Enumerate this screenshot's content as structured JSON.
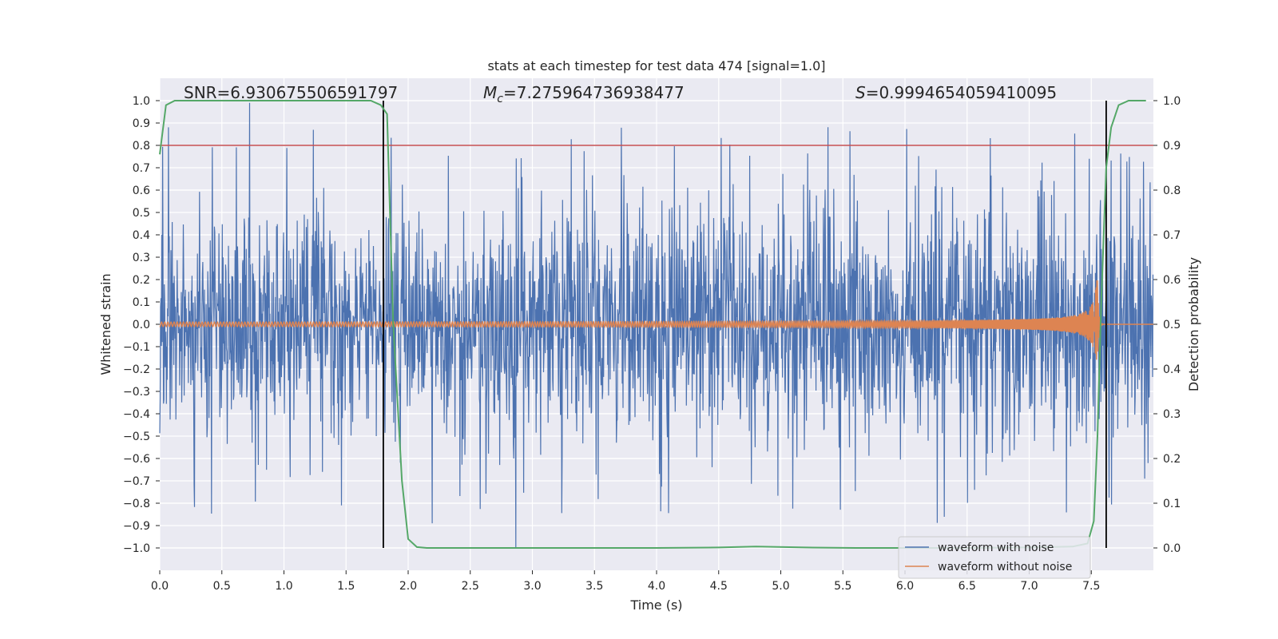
{
  "chart_data": {
    "type": "line",
    "title": "stats at each timestep for test data 474 [signal=1.0]",
    "xlabel": "Time (s)",
    "ylabel_left": "Whitened strain",
    "ylabel_right": "Detection probability",
    "xlim": [
      0.0,
      8.0
    ],
    "ylim_left": [
      -1.1,
      1.1
    ],
    "ylim_right": [
      -0.05,
      1.05
    ],
    "x_ticks": [
      "0.0",
      "0.5",
      "1.0",
      "1.5",
      "2.0",
      "2.5",
      "3.0",
      "3.5",
      "4.0",
      "4.5",
      "5.0",
      "5.5",
      "6.0",
      "6.5",
      "7.0",
      "7.5"
    ],
    "y_ticks_left": [
      "1.0",
      "0.9",
      "0.8",
      "0.7",
      "0.6",
      "0.5",
      "0.4",
      "0.3",
      "0.2",
      "0.1",
      "0.0",
      "−0.1",
      "−0.2",
      "−0.3",
      "−0.4",
      "−0.5",
      "−0.6",
      "−0.7",
      "−0.8",
      "−0.9",
      "−1.0"
    ],
    "y_ticks_right": [
      "1.0",
      "0.9",
      "0.8",
      "0.7",
      "0.6",
      "0.5",
      "0.4",
      "0.3",
      "0.2",
      "0.1",
      "0.0"
    ],
    "grid": true,
    "annotations": {
      "snr": "SNR=6.930675506591797",
      "mc_symbol": "M",
      "mc_sub": "c",
      "mc_value": "=7.275964736938477",
      "s_symbol": "S",
      "s_value": "=0.9994654059410095"
    },
    "threshold": {
      "value": 0.9,
      "axis": "right",
      "color": "#c44e52"
    },
    "vlines": [
      1.8,
      7.62
    ],
    "series": [
      {
        "name": "waveform with noise",
        "color": "#4c72b0",
        "axis": "left",
        "kind": "noise",
        "envelope": 0.25,
        "peak_max": 0.99,
        "peak_min": -1.0
      },
      {
        "name": "waveform without noise",
        "color": "#dd8452",
        "axis": "left",
        "kind": "chirp",
        "amplitude_start": 0.01,
        "amplitude_peak": 0.22,
        "merger_time": 7.55
      },
      {
        "name": "Detection probability",
        "color": "#55a868",
        "axis": "right",
        "kind": "probability",
        "x": [
          0.0,
          0.05,
          0.12,
          0.3,
          0.6,
          1.0,
          1.4,
          1.7,
          1.78,
          1.83,
          1.88,
          1.95,
          2.0,
          2.07,
          2.15,
          2.5,
          3.0,
          3.5,
          4.0,
          4.5,
          4.8,
          5.2,
          5.6,
          6.0,
          6.5,
          7.0,
          7.35,
          7.47,
          7.52,
          7.55,
          7.58,
          7.62,
          7.66,
          7.72,
          7.8,
          7.88,
          7.94
        ],
        "values": [
          0.88,
          0.99,
          1.0,
          1.0,
          1.0,
          1.0,
          1.0,
          1.0,
          0.99,
          0.97,
          0.5,
          0.15,
          0.02,
          0.002,
          0.0,
          0.0,
          0.0,
          0.0,
          0.0,
          0.001,
          0.003,
          0.001,
          0.0,
          0.0,
          0.0,
          0.001,
          0.003,
          0.01,
          0.06,
          0.25,
          0.55,
          0.85,
          0.94,
          0.99,
          1.0,
          1.0,
          1.0
        ]
      }
    ],
    "legend": {
      "placement": "lower-right",
      "entries": [
        "waveform with noise",
        "waveform without noise"
      ]
    }
  }
}
